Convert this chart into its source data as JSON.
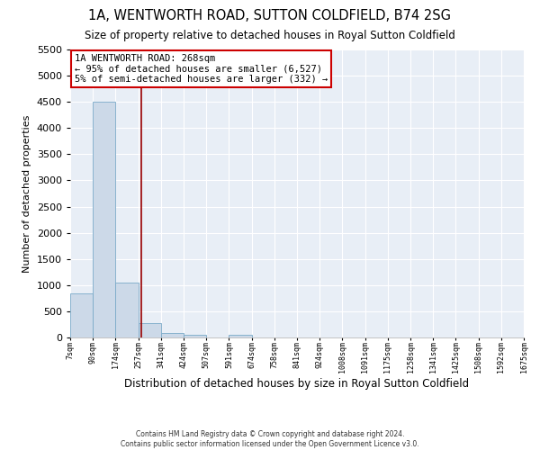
{
  "title": "1A, WENTWORTH ROAD, SUTTON COLDFIELD, B74 2SG",
  "subtitle": "Size of property relative to detached houses in Royal Sutton Coldfield",
  "xlabel": "Distribution of detached houses by size in Royal Sutton Coldfield",
  "ylabel": "Number of detached properties",
  "footer_line1": "Contains HM Land Registry data © Crown copyright and database right 2024.",
  "footer_line2": "Contains public sector information licensed under the Open Government Licence v3.0.",
  "bin_labels": [
    "7sqm",
    "90sqm",
    "174sqm",
    "257sqm",
    "341sqm",
    "424sqm",
    "507sqm",
    "591sqm",
    "674sqm",
    "758sqm",
    "841sqm",
    "924sqm",
    "1008sqm",
    "1091sqm",
    "1175sqm",
    "1258sqm",
    "1341sqm",
    "1425sqm",
    "1508sqm",
    "1592sqm",
    "1675sqm"
  ],
  "bar_values": [
    850,
    4500,
    1050,
    280,
    80,
    60,
    0,
    50,
    0,
    0,
    0,
    0,
    0,
    0,
    0,
    0,
    0,
    0,
    0,
    0
  ],
  "bar_color": "#ccd9e8",
  "bar_edge_color": "#7aaac8",
  "property_sqm": 268,
  "property_label": "1A WENTWORTH ROAD: 268sqm",
  "annotation_line1": "← 95% of detached houses are smaller (6,527)",
  "annotation_line2": "5% of semi-detached houses are larger (332) →",
  "vline_color": "#990000",
  "annotation_box_color": "#ffffff",
  "annotation_box_edge_color": "#cc0000",
  "ylim": [
    0,
    5500
  ],
  "yticks": [
    0,
    500,
    1000,
    1500,
    2000,
    2500,
    3000,
    3500,
    4000,
    4500,
    5000,
    5500
  ],
  "plot_bg_color": "#e8eef6"
}
